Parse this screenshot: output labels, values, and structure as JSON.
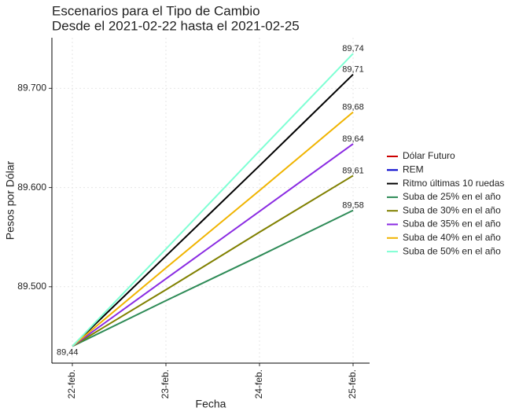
{
  "chart_data": {
    "type": "line",
    "title": "Escenarios para el Tipo de Cambio",
    "subtitle": "Desde el 2021-02-22 hasta el 2021-02-25",
    "x_label": "Fecha",
    "y_label": "Pesos por Dólar",
    "categories": [
      "22-feb.",
      "23-feb.",
      "24-feb.",
      "25-feb."
    ],
    "ylim": [
      89.423,
      89.751
    ],
    "yticks": [
      {
        "value": 89.5,
        "label": "89.500"
      },
      {
        "value": 89.6,
        "label": "89.600"
      },
      {
        "value": 89.7,
        "label": "89.700"
      }
    ],
    "grid": true,
    "legend": "right",
    "series": [
      {
        "name": "Dólar Futuro",
        "color": "#cc0000",
        "values": [
          null,
          null,
          null,
          null
        ]
      },
      {
        "name": "REM",
        "color": "#0000cc",
        "values": [
          null,
          null,
          null,
          null
        ]
      },
      {
        "name": "Ritmo últimas 10 ruedas",
        "color": "#000000",
        "values": [
          89.44,
          89.531,
          89.622,
          89.714
        ],
        "value_labels": [
          null,
          null,
          null,
          "89,71"
        ]
      },
      {
        "name": "Suba de 25% en el año",
        "color": "#2e8b57",
        "values": [
          89.44,
          89.486,
          89.531,
          89.577
        ],
        "value_labels": [
          "89,44",
          null,
          null,
          "89,58"
        ]
      },
      {
        "name": "Suba de 30% en el año",
        "color": "#808000",
        "values": [
          89.44,
          89.497,
          89.555,
          89.612
        ],
        "value_labels": [
          null,
          null,
          null,
          "89,61"
        ]
      },
      {
        "name": "Suba de 35% en el año",
        "color": "#8a2be2",
        "values": [
          89.44,
          89.508,
          89.576,
          89.644
        ],
        "value_labels": [
          null,
          null,
          null,
          "89,64"
        ]
      },
      {
        "name": "Suba de 40% en el año",
        "color": "#f0b400",
        "values": [
          89.44,
          89.519,
          89.597,
          89.676
        ],
        "value_labels": [
          null,
          null,
          null,
          "89,68"
        ]
      },
      {
        "name": "Suba de 50% en el año",
        "color": "#7fffd4",
        "values": [
          89.44,
          89.538,
          89.637,
          89.735
        ],
        "value_labels": [
          null,
          null,
          null,
          "89,74"
        ]
      }
    ]
  }
}
